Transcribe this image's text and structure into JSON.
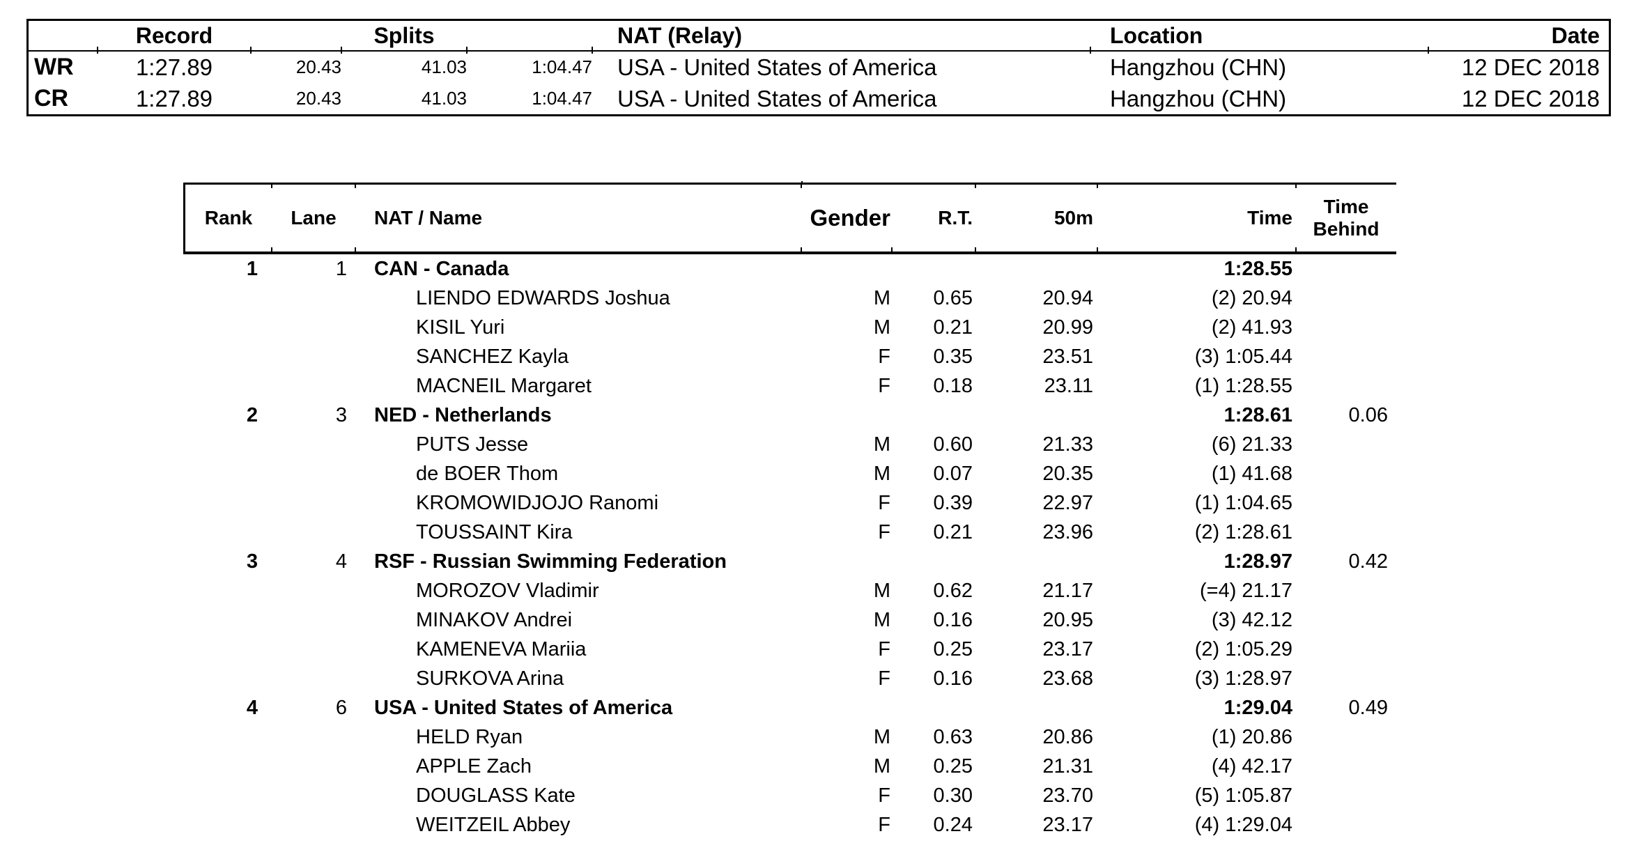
{
  "records": {
    "headers": {
      "record": "Record",
      "splits": "Splits",
      "nat": "NAT (Relay)",
      "location": "Location",
      "date": "Date"
    },
    "rows": [
      {
        "label": "WR",
        "time": "1:27.89",
        "splits": [
          "20.43",
          "41.03",
          "1:04.47"
        ],
        "nat": "USA - United States of America",
        "location": "Hangzhou (CHN)",
        "date": "12 DEC 2018"
      },
      {
        "label": "CR",
        "time": "1:27.89",
        "splits": [
          "20.43",
          "41.03",
          "1:04.47"
        ],
        "nat": "USA - United States of America",
        "location": "Hangzhou (CHN)",
        "date": "12 DEC 2018"
      }
    ]
  },
  "results": {
    "headers": {
      "rank": "Rank",
      "lane": "Lane",
      "nat_name": "NAT / Name",
      "gender": "Gender",
      "rt": "R.T.",
      "m50": "50m",
      "time": "Time",
      "behind_line1": "Time",
      "behind_line2": "Behind"
    },
    "teams": [
      {
        "rank": "1",
        "lane": "1",
        "name": "CAN - Canada",
        "time": "1:28.55",
        "behind": "",
        "swimmers": [
          {
            "name": "LIENDO EDWARDS Joshua",
            "gender": "M",
            "rt": "0.65",
            "m50": "20.94",
            "time": "(2) 20.94"
          },
          {
            "name": "KISIL Yuri",
            "gender": "M",
            "rt": "0.21",
            "m50": "20.99",
            "time": "(2) 41.93"
          },
          {
            "name": "SANCHEZ Kayla",
            "gender": "F",
            "rt": "0.35",
            "m50": "23.51",
            "time": "(3) 1:05.44"
          },
          {
            "name": "MACNEIL Margaret",
            "gender": "F",
            "rt": "0.18",
            "m50": "23.11",
            "time": "(1) 1:28.55"
          }
        ]
      },
      {
        "rank": "2",
        "lane": "3",
        "name": "NED - Netherlands",
        "time": "1:28.61",
        "behind": "0.06",
        "swimmers": [
          {
            "name": "PUTS Jesse",
            "gender": "M",
            "rt": "0.60",
            "m50": "21.33",
            "time": "(6) 21.33"
          },
          {
            "name": "de BOER Thom",
            "gender": "M",
            "rt": "0.07",
            "m50": "20.35",
            "time": "(1) 41.68"
          },
          {
            "name": "KROMOWIDJOJO Ranomi",
            "gender": "F",
            "rt": "0.39",
            "m50": "22.97",
            "time": "(1) 1:04.65"
          },
          {
            "name": "TOUSSAINT Kira",
            "gender": "F",
            "rt": "0.21",
            "m50": "23.96",
            "time": "(2) 1:28.61"
          }
        ]
      },
      {
        "rank": "3",
        "lane": "4",
        "name": "RSF - Russian Swimming Federation",
        "time": "1:28.97",
        "behind": "0.42",
        "swimmers": [
          {
            "name": "MOROZOV Vladimir",
            "gender": "M",
            "rt": "0.62",
            "m50": "21.17",
            "time": "(=4) 21.17"
          },
          {
            "name": "MINAKOV Andrei",
            "gender": "M",
            "rt": "0.16",
            "m50": "20.95",
            "time": "(3) 42.12"
          },
          {
            "name": "KAMENEVA Mariia",
            "gender": "F",
            "rt": "0.25",
            "m50": "23.17",
            "time": "(2) 1:05.29"
          },
          {
            "name": "SURKOVA Arina",
            "gender": "F",
            "rt": "0.16",
            "m50": "23.68",
            "time": "(3) 1:28.97"
          }
        ]
      },
      {
        "rank": "4",
        "lane": "6",
        "name": "USA - United States of America",
        "time": "1:29.04",
        "behind": "0.49",
        "swimmers": [
          {
            "name": "HELD Ryan",
            "gender": "M",
            "rt": "0.63",
            "m50": "20.86",
            "time": "(1) 20.86"
          },
          {
            "name": "APPLE Zach",
            "gender": "M",
            "rt": "0.25",
            "m50": "21.31",
            "time": "(4) 42.17"
          },
          {
            "name": "DOUGLASS Kate",
            "gender": "F",
            "rt": "0.30",
            "m50": "23.70",
            "time": "(5) 1:05.87"
          },
          {
            "name": "WEITZEIL Abbey",
            "gender": "F",
            "rt": "0.24",
            "m50": "23.17",
            "time": "(4) 1:29.04"
          }
        ]
      }
    ]
  }
}
